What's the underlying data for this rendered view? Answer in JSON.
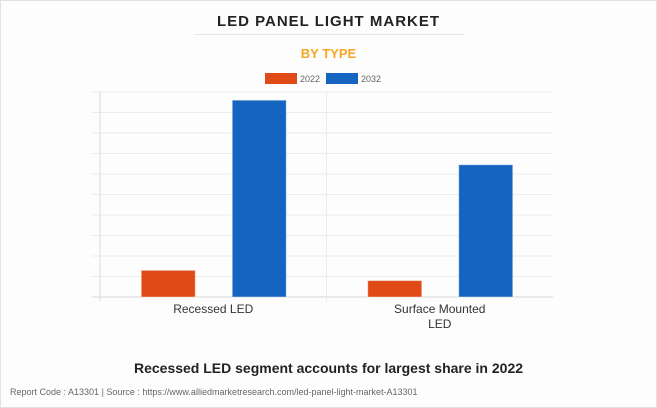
{
  "title": "LED PANEL LIGHT MARKET",
  "subtitle": "BY TYPE",
  "caption": "Recessed LED segment accounts for largest share in 2022",
  "footer": "Report Code : A13301  |  Source : https://www.alliedmarketresearch.com/led-panel-light-market-A13301",
  "chart_data": {
    "type": "bar",
    "categories": [
      "Recessed LED",
      "Surface Mounted LED"
    ],
    "category_lines": [
      [
        "Recessed LED"
      ],
      [
        "Surface Mounted",
        "LED"
      ]
    ],
    "series": [
      {
        "name": "2022",
        "color": "#e04a17",
        "values": [
          1.3,
          0.8
        ]
      },
      {
        "name": "2032",
        "color": "#1565c0",
        "values": [
          9.6,
          6.45
        ]
      }
    ],
    "ylim": [
      0,
      10
    ],
    "grid": true,
    "legend": "top-center",
    "xlabel": "",
    "ylabel": ""
  }
}
